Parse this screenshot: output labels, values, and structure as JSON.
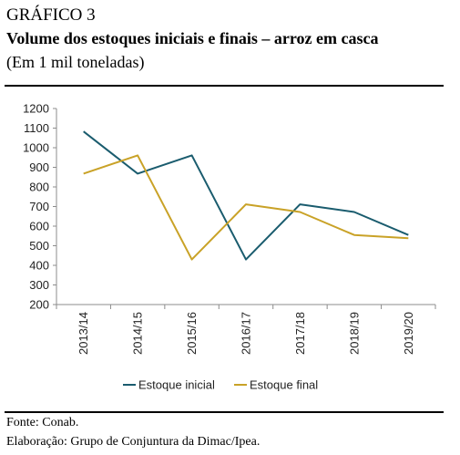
{
  "header": {
    "label": "GRÁFICO 3",
    "title": "Volume dos estoques iniciais e finais – arroz em casca",
    "subtitle": "(Em 1 mil toneladas)"
  },
  "footer": {
    "source": "Fonte: Conab.",
    "elaboration": "Elaboração: Grupo de Conjuntura da Dimac/Ipea."
  },
  "chart_data": {
    "type": "line",
    "categories": [
      "2013/14",
      "2014/15",
      "2015/16",
      "2016/17",
      "2017/18",
      "2018/19",
      "2019/20"
    ],
    "series": [
      {
        "name": "Estoque inicial",
        "color": "#1a5c6e",
        "values": [
          1083,
          868,
          961,
          430,
          711,
          672,
          555
        ]
      },
      {
        "name": "Estoque final",
        "color": "#c9a227",
        "values": [
          868,
          961,
          430,
          711,
          672,
          555,
          538
        ]
      }
    ],
    "ylim": [
      200,
      1200
    ],
    "yticks": [
      200,
      300,
      400,
      500,
      600,
      700,
      800,
      900,
      1000,
      1100,
      1200
    ],
    "grid": false,
    "legend": "bottom"
  }
}
